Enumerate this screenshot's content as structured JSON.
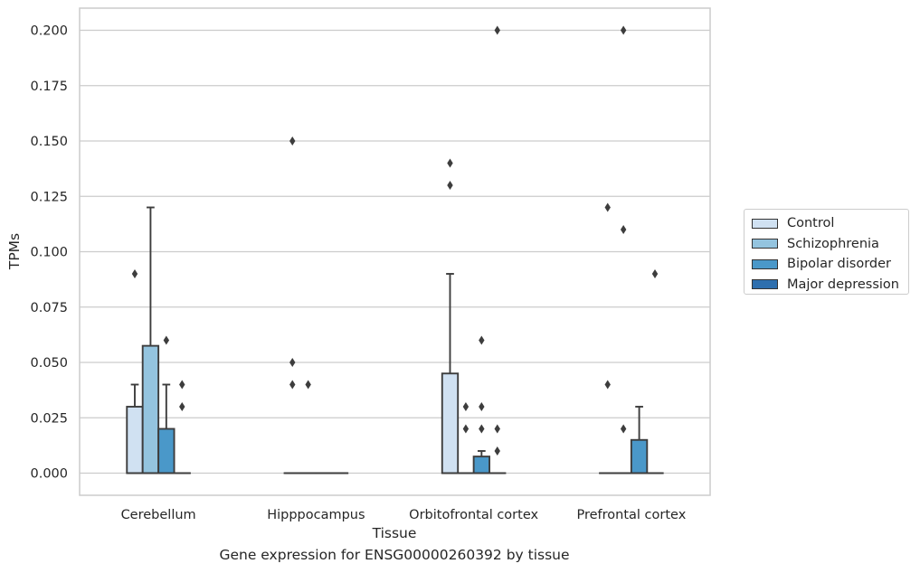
{
  "chart_data": {
    "type": "box",
    "title": "",
    "caption": "Gene expression for ENSG00000260392 by tissue",
    "xlabel": "Tissue",
    "ylabel": "TPMs",
    "ylim": [
      -0.01,
      0.21
    ],
    "yticks": [
      "0.000",
      "0.025",
      "0.050",
      "0.075",
      "0.100",
      "0.125",
      "0.150",
      "0.175",
      "0.200"
    ],
    "ytick_values": [
      0,
      0.025,
      0.05,
      0.075,
      0.1,
      0.125,
      0.15,
      0.175,
      0.2
    ],
    "grid": true,
    "legend_position": "right",
    "categories": [
      "Cerebellum",
      "Hipppocampus",
      "Orbitofrontal cortex",
      "Prefrontal cortex"
    ],
    "series": [
      {
        "name": "Control",
        "color": "#d0e1f2",
        "boxes": [
          {
            "whislo": 0,
            "q1": 0,
            "med": 0,
            "q3": 0.03,
            "whishi": 0.04,
            "fliers": [
              0.09
            ]
          },
          {
            "whislo": 0,
            "q1": 0,
            "med": 0,
            "q3": 0,
            "whishi": 0,
            "fliers": [
              0.15,
              0.05,
              0.04
            ]
          },
          {
            "whislo": 0,
            "q1": 0,
            "med": 0,
            "q3": 0.045,
            "whishi": 0.09,
            "fliers": [
              0.14,
              0.13
            ]
          },
          {
            "whislo": 0,
            "q1": 0,
            "med": 0,
            "q3": 0,
            "whishi": 0,
            "fliers": [
              0.12,
              0.04
            ]
          }
        ]
      },
      {
        "name": "Schizophrenia",
        "color": "#94c4df",
        "boxes": [
          {
            "whislo": 0,
            "q1": 0,
            "med": 0,
            "q3": 0.0575,
            "whishi": 0.12,
            "fliers": []
          },
          {
            "whislo": 0,
            "q1": 0,
            "med": 0,
            "q3": 0,
            "whishi": 0,
            "fliers": [
              0.04
            ]
          },
          {
            "whislo": 0,
            "q1": 0,
            "med": 0,
            "q3": 0,
            "whishi": 0,
            "fliers": [
              0.03,
              0.02
            ]
          },
          {
            "whislo": 0,
            "q1": 0,
            "med": 0,
            "q3": 0,
            "whishi": 0,
            "fliers": [
              0.2,
              0.11,
              0.02
            ]
          }
        ]
      },
      {
        "name": "Bipolar disorder",
        "color": "#4a98c9",
        "boxes": [
          {
            "whislo": 0,
            "q1": 0,
            "med": 0,
            "q3": 0.02,
            "whishi": 0.04,
            "fliers": [
              0.06
            ]
          },
          {
            "whislo": 0,
            "q1": 0,
            "med": 0,
            "q3": 0,
            "whishi": 0,
            "fliers": []
          },
          {
            "whislo": 0,
            "q1": 0,
            "med": 0,
            "q3": 0.0075,
            "whishi": 0.01,
            "fliers": [
              0.06,
              0.03,
              0.02
            ]
          },
          {
            "whislo": 0,
            "q1": 0,
            "med": 0,
            "q3": 0.015,
            "whishi": 0.03,
            "fliers": []
          }
        ]
      },
      {
        "name": "Major depression",
        "color": "#2e6fae",
        "boxes": [
          {
            "whislo": 0,
            "q1": 0,
            "med": 0,
            "q3": 0,
            "whishi": 0,
            "fliers": [
              0.04,
              0.03
            ]
          },
          {
            "whislo": 0,
            "q1": 0,
            "med": 0,
            "q3": 0,
            "whishi": 0,
            "fliers": []
          },
          {
            "whislo": 0,
            "q1": 0,
            "med": 0,
            "q3": 0,
            "whishi": 0,
            "fliers": [
              0.2,
              0.02,
              0.01
            ]
          },
          {
            "whislo": 0,
            "q1": 0,
            "med": 0,
            "q3": 0,
            "whishi": 0,
            "fliers": [
              0.09
            ]
          }
        ]
      }
    ]
  }
}
